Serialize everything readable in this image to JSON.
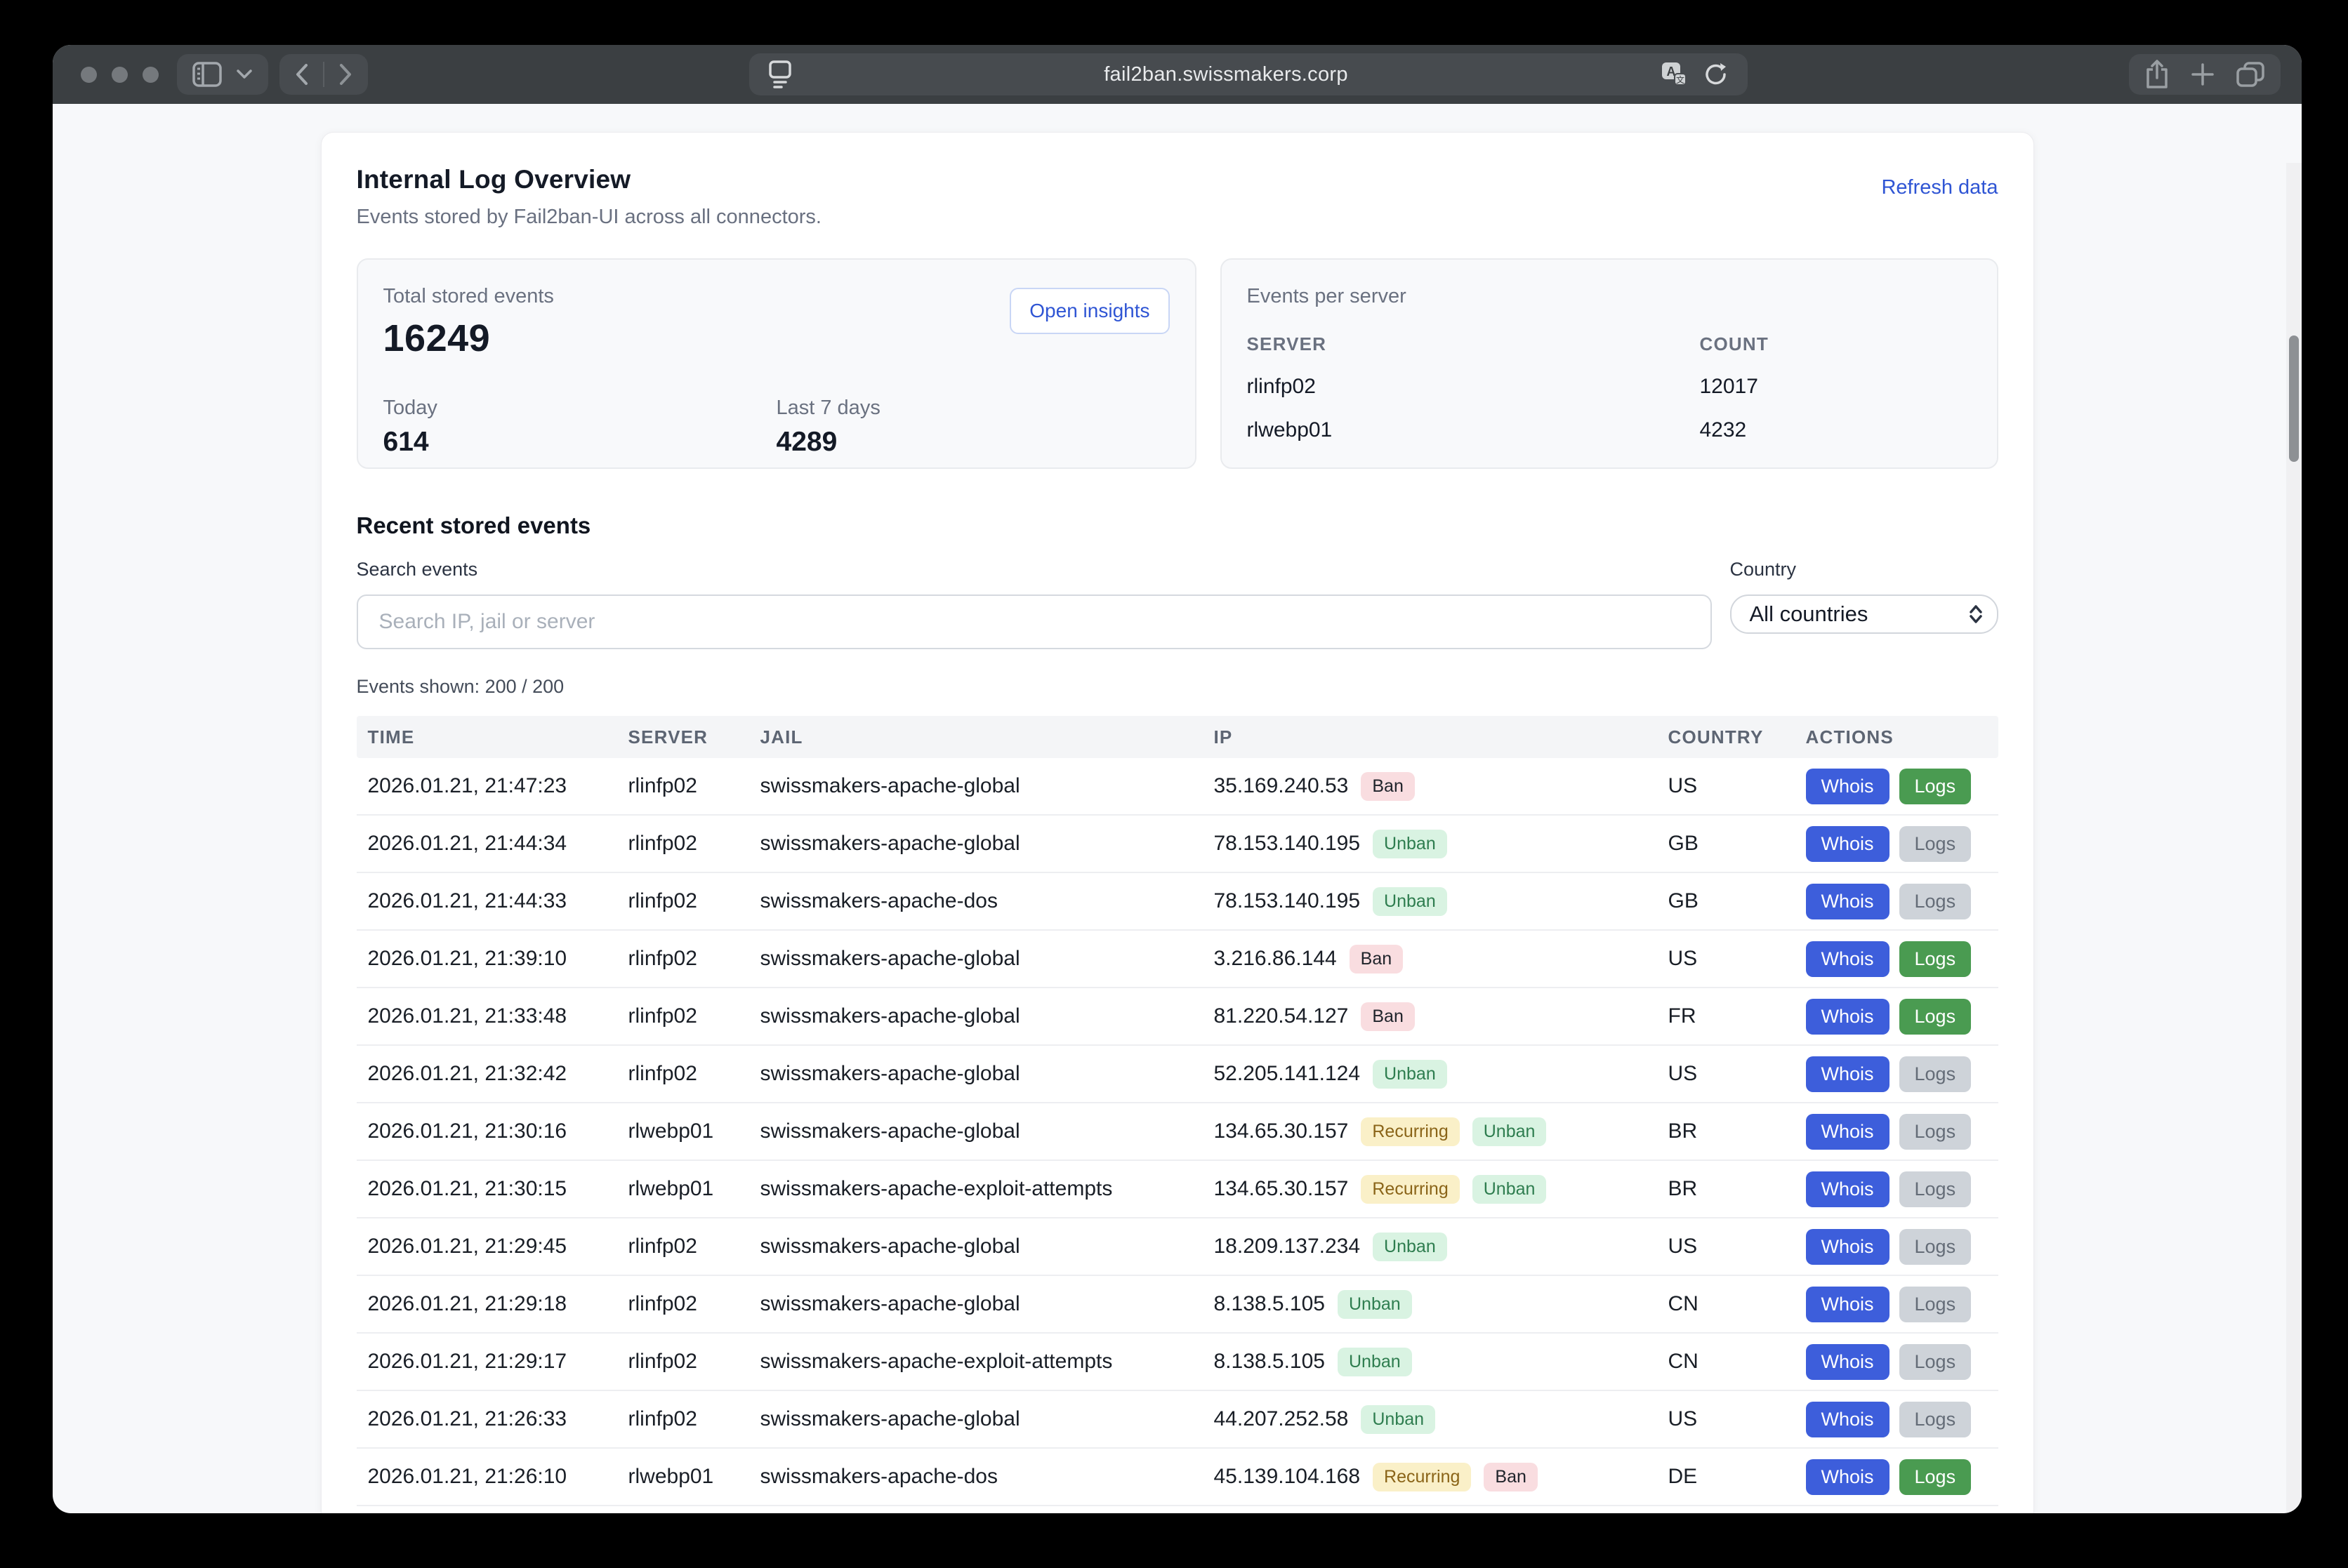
{
  "browser": {
    "url": "fail2ban.swissmakers.corp"
  },
  "colors": {
    "accent_blue": "#3d5edb",
    "link_blue": "#2f55d4",
    "success_green": "#4a9b51",
    "ban_badge_bg": "#f9dde0",
    "unban_badge_bg": "#d9f3e2",
    "unban_badge_text": "#2e7d4f",
    "recurring_badge_bg": "#faf0c8",
    "recurring_badge_text": "#8a6418"
  },
  "page": {
    "title": "Internal Log Overview",
    "subtitle": "Events stored by Fail2ban-UI across all connectors.",
    "refresh_link": "Refresh data",
    "stats": {
      "total_label": "Total stored events",
      "total_value": "16249",
      "open_insights_label": "Open insights",
      "today_label": "Today",
      "today_value": "614",
      "last7_label": "Last 7 days",
      "last7_value": "4289"
    },
    "per_server": {
      "title": "Events per server",
      "columns": [
        "SERVER",
        "COUNT"
      ],
      "rows": [
        {
          "server": "rlinfp02",
          "count": "12017"
        },
        {
          "server": "rlwebp01",
          "count": "4232"
        }
      ]
    },
    "events": {
      "heading": "Recent stored events",
      "search_label": "Search events",
      "search_placeholder": "Search IP, jail or server",
      "country_label": "Country",
      "country_value": "All countries",
      "shown_text": "Events shown: 200 / 200",
      "columns": [
        "TIME",
        "SERVER",
        "JAIL",
        "IP",
        "COUNTRY",
        "ACTIONS"
      ],
      "actions": {
        "whois": "Whois",
        "logs": "Logs"
      },
      "rows": [
        {
          "time": "2026.01.21, 21:47:23",
          "server": "rlinfp02",
          "jail": "swissmakers-apache-global",
          "ip": "35.169.240.53",
          "badges": [
            "Ban"
          ],
          "country": "US",
          "logs": "green"
        },
        {
          "time": "2026.01.21, 21:44:34",
          "server": "rlinfp02",
          "jail": "swissmakers-apache-global",
          "ip": "78.153.140.195",
          "badges": [
            "Unban"
          ],
          "country": "GB",
          "logs": "gray"
        },
        {
          "time": "2026.01.21, 21:44:33",
          "server": "rlinfp02",
          "jail": "swissmakers-apache-dos",
          "ip": "78.153.140.195",
          "badges": [
            "Unban"
          ],
          "country": "GB",
          "logs": "gray"
        },
        {
          "time": "2026.01.21, 21:39:10",
          "server": "rlinfp02",
          "jail": "swissmakers-apache-global",
          "ip": "3.216.86.144",
          "badges": [
            "Ban"
          ],
          "country": "US",
          "logs": "green"
        },
        {
          "time": "2026.01.21, 21:33:48",
          "server": "rlinfp02",
          "jail": "swissmakers-apache-global",
          "ip": "81.220.54.127",
          "badges": [
            "Ban"
          ],
          "country": "FR",
          "logs": "green"
        },
        {
          "time": "2026.01.21, 21:32:42",
          "server": "rlinfp02",
          "jail": "swissmakers-apache-global",
          "ip": "52.205.141.124",
          "badges": [
            "Unban"
          ],
          "country": "US",
          "logs": "gray"
        },
        {
          "time": "2026.01.21, 21:30:16",
          "server": "rlwebp01",
          "jail": "swissmakers-apache-global",
          "ip": "134.65.30.157",
          "badges": [
            "Recurring",
            "Unban"
          ],
          "country": "BR",
          "logs": "gray"
        },
        {
          "time": "2026.01.21, 21:30:15",
          "server": "rlwebp01",
          "jail": "swissmakers-apache-exploit-attempts",
          "ip": "134.65.30.157",
          "badges": [
            "Recurring",
            "Unban"
          ],
          "country": "BR",
          "logs": "gray"
        },
        {
          "time": "2026.01.21, 21:29:45",
          "server": "rlinfp02",
          "jail": "swissmakers-apache-global",
          "ip": "18.209.137.234",
          "badges": [
            "Unban"
          ],
          "country": "US",
          "logs": "gray"
        },
        {
          "time": "2026.01.21, 21:29:18",
          "server": "rlinfp02",
          "jail": "swissmakers-apache-global",
          "ip": "8.138.5.105",
          "badges": [
            "Unban"
          ],
          "country": "CN",
          "logs": "gray"
        },
        {
          "time": "2026.01.21, 21:29:17",
          "server": "rlinfp02",
          "jail": "swissmakers-apache-exploit-attempts",
          "ip": "8.138.5.105",
          "badges": [
            "Unban"
          ],
          "country": "CN",
          "logs": "gray"
        },
        {
          "time": "2026.01.21, 21:26:33",
          "server": "rlinfp02",
          "jail": "swissmakers-apache-global",
          "ip": "44.207.252.58",
          "badges": [
            "Unban"
          ],
          "country": "US",
          "logs": "gray"
        },
        {
          "time": "2026.01.21, 21:26:10",
          "server": "rlwebp01",
          "jail": "swissmakers-apache-dos",
          "ip": "45.139.104.168",
          "badges": [
            "Recurring",
            "Ban"
          ],
          "country": "DE",
          "logs": "green"
        }
      ]
    }
  }
}
